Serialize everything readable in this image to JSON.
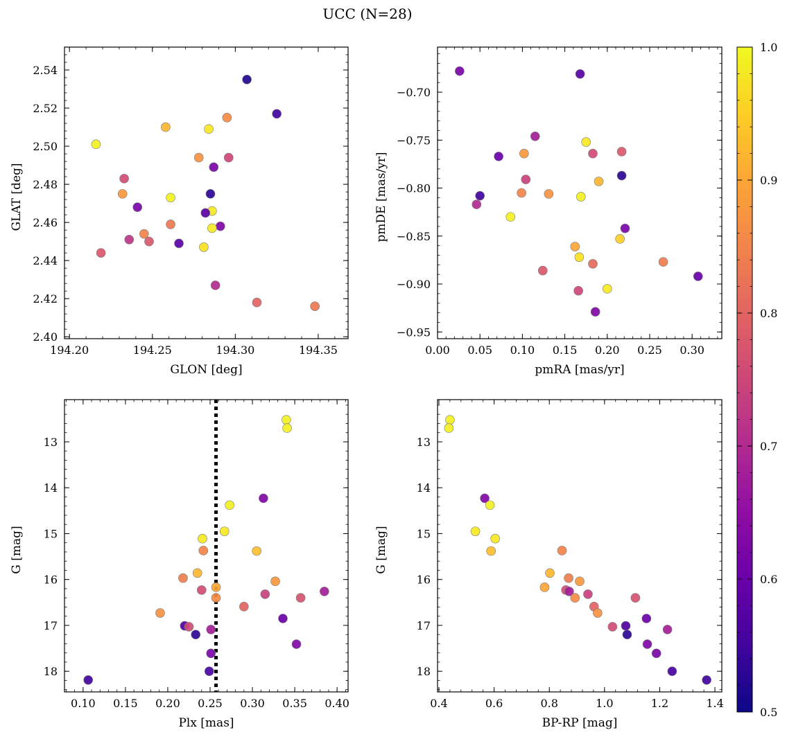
{
  "figure": {
    "title": "UCC (N=28)"
  },
  "colorbar": {
    "min": 0.5,
    "max": 1.0,
    "colormap": "plasma",
    "tick_labels": [
      "0.5",
      "0.6",
      "0.7",
      "0.8",
      "0.9",
      "1.0"
    ]
  },
  "chart_data": [
    {
      "id": "sky",
      "type": "scatter",
      "xlabel": "GLON [deg]",
      "ylabel": "GLAT [deg]",
      "xlim": [
        194.197,
        194.368
      ],
      "ylim": [
        2.399,
        2.552
      ],
      "xticks": [
        194.2,
        194.25,
        194.3,
        194.35
      ],
      "xtick_labels": [
        "194.20",
        "194.25",
        "194.30",
        "194.35"
      ],
      "yticks": [
        2.4,
        2.42,
        2.44,
        2.46,
        2.48,
        2.5,
        2.52,
        2.54
      ],
      "ytick_labels": [
        "2.40",
        "2.42",
        "2.44",
        "2.46",
        "2.48",
        "2.50",
        "2.52",
        "2.54"
      ],
      "points": [
        {
          "x": 194.307,
          "y": 2.535,
          "c": 0.52
        },
        {
          "x": 194.325,
          "y": 2.517,
          "c": 0.55
        },
        {
          "x": 194.295,
          "y": 2.515,
          "c": 0.86
        },
        {
          "x": 194.258,
          "y": 2.51,
          "c": 0.92
        },
        {
          "x": 194.284,
          "y": 2.509,
          "c": 0.98
        },
        {
          "x": 194.216,
          "y": 2.501,
          "c": 0.99
        },
        {
          "x": 194.278,
          "y": 2.494,
          "c": 0.87
        },
        {
          "x": 194.296,
          "y": 2.494,
          "c": 0.75
        },
        {
          "x": 194.287,
          "y": 2.489,
          "c": 0.62
        },
        {
          "x": 194.233,
          "y": 2.483,
          "c": 0.76
        },
        {
          "x": 194.232,
          "y": 2.475,
          "c": 0.88
        },
        {
          "x": 194.285,
          "y": 2.475,
          "c": 0.53
        },
        {
          "x": 194.261,
          "y": 2.473,
          "c": 0.99
        },
        {
          "x": 194.241,
          "y": 2.468,
          "c": 0.62
        },
        {
          "x": 194.286,
          "y": 2.466,
          "c": 0.98
        },
        {
          "x": 194.282,
          "y": 2.465,
          "c": 0.58
        },
        {
          "x": 194.261,
          "y": 2.459,
          "c": 0.83
        },
        {
          "x": 194.291,
          "y": 2.458,
          "c": 0.63
        },
        {
          "x": 194.286,
          "y": 2.457,
          "c": 0.98
        },
        {
          "x": 194.245,
          "y": 2.454,
          "c": 0.85
        },
        {
          "x": 194.236,
          "y": 2.451,
          "c": 0.72
        },
        {
          "x": 194.248,
          "y": 2.45,
          "c": 0.78
        },
        {
          "x": 194.266,
          "y": 2.449,
          "c": 0.58
        },
        {
          "x": 194.281,
          "y": 2.447,
          "c": 0.97
        },
        {
          "x": 194.219,
          "y": 2.444,
          "c": 0.78
        },
        {
          "x": 194.288,
          "y": 2.427,
          "c": 0.7
        },
        {
          "x": 194.313,
          "y": 2.418,
          "c": 0.8
        },
        {
          "x": 194.348,
          "y": 2.416,
          "c": 0.83
        }
      ]
    },
    {
      "id": "pm",
      "type": "scatter",
      "xlabel": "pmRA [mas/yr]",
      "ylabel": "pmDE [mas/yr]",
      "xlim": [
        0.0,
        0.335
      ],
      "ylim": [
        -0.957,
        -0.653
      ],
      "xticks": [
        0.0,
        0.05,
        0.1,
        0.15,
        0.2,
        0.25,
        0.3
      ],
      "xtick_labels": [
        "0.00",
        "0.05",
        "0.10",
        "0.15",
        "0.20",
        "0.25",
        "0.30"
      ],
      "yticks": [
        -0.95,
        -0.9,
        -0.85,
        -0.8,
        -0.75,
        -0.7
      ],
      "ytick_labels": [
        "−0.95",
        "−0.90",
        "−0.85",
        "−0.80",
        "−0.75",
        "−0.70"
      ],
      "points": [
        {
          "x": 0.026,
          "y": -0.678,
          "c": 0.62
        },
        {
          "x": 0.168,
          "y": -0.681,
          "c": 0.58
        },
        {
          "x": 0.115,
          "y": -0.746,
          "c": 0.68
        },
        {
          "x": 0.175,
          "y": -0.752,
          "c": 0.98
        },
        {
          "x": 0.217,
          "y": -0.762,
          "c": 0.78
        },
        {
          "x": 0.102,
          "y": -0.764,
          "c": 0.88
        },
        {
          "x": 0.183,
          "y": -0.764,
          "c": 0.76
        },
        {
          "x": 0.072,
          "y": -0.767,
          "c": 0.6
        },
        {
          "x": 0.217,
          "y": -0.787,
          "c": 0.53
        },
        {
          "x": 0.104,
          "y": -0.791,
          "c": 0.74
        },
        {
          "x": 0.19,
          "y": -0.793,
          "c": 0.92
        },
        {
          "x": 0.099,
          "y": -0.805,
          "c": 0.85
        },
        {
          "x": 0.131,
          "y": -0.806,
          "c": 0.87
        },
        {
          "x": 0.05,
          "y": -0.808,
          "c": 0.55
        },
        {
          "x": 0.169,
          "y": -0.809,
          "c": 0.99
        },
        {
          "x": 0.046,
          "y": -0.817,
          "c": 0.7
        },
        {
          "x": 0.086,
          "y": -0.83,
          "c": 0.99
        },
        {
          "x": 0.221,
          "y": -0.842,
          "c": 0.62
        },
        {
          "x": 0.215,
          "y": -0.853,
          "c": 0.95
        },
        {
          "x": 0.162,
          "y": -0.861,
          "c": 0.9
        },
        {
          "x": 0.167,
          "y": -0.872,
          "c": 0.97
        },
        {
          "x": 0.266,
          "y": -0.877,
          "c": 0.84
        },
        {
          "x": 0.183,
          "y": -0.879,
          "c": 0.81
        },
        {
          "x": 0.124,
          "y": -0.886,
          "c": 0.78
        },
        {
          "x": 0.307,
          "y": -0.892,
          "c": 0.6
        },
        {
          "x": 0.2,
          "y": -0.905,
          "c": 0.98
        },
        {
          "x": 0.166,
          "y": -0.907,
          "c": 0.75
        },
        {
          "x": 0.186,
          "y": -0.929,
          "c": 0.63
        }
      ]
    },
    {
      "id": "plx",
      "type": "scatter",
      "xlabel": "Plx [mas]",
      "ylabel": "G [mag]",
      "xlim": [
        0.078,
        0.413
      ],
      "ylim": [
        18.45,
        12.08
      ],
      "y_inverted": true,
      "vline": {
        "x": 0.257,
        "style": "dotted"
      },
      "xticks": [
        0.1,
        0.15,
        0.2,
        0.25,
        0.3,
        0.35,
        0.4
      ],
      "xtick_labels": [
        "0.10",
        "0.15",
        "0.20",
        "0.25",
        "0.30",
        "0.35",
        "0.40"
      ],
      "yticks": [
        13,
        14,
        15,
        16,
        17,
        18
      ],
      "ytick_labels": [
        "13",
        "14",
        "15",
        "16",
        "17",
        "18"
      ],
      "points": [
        {
          "x": 0.34,
          "y": 12.52,
          "c": 0.99
        },
        {
          "x": 0.341,
          "y": 12.7,
          "c": 0.99
        },
        {
          "x": 0.313,
          "y": 14.23,
          "c": 0.63
        },
        {
          "x": 0.273,
          "y": 14.38,
          "c": 0.99
        },
        {
          "x": 0.267,
          "y": 14.95,
          "c": 0.98
        },
        {
          "x": 0.241,
          "y": 15.11,
          "c": 0.98
        },
        {
          "x": 0.242,
          "y": 15.37,
          "c": 0.85
        },
        {
          "x": 0.305,
          "y": 15.38,
          "c": 0.93
        },
        {
          "x": 0.235,
          "y": 15.86,
          "c": 0.92
        },
        {
          "x": 0.218,
          "y": 15.97,
          "c": 0.84
        },
        {
          "x": 0.327,
          "y": 16.04,
          "c": 0.88
        },
        {
          "x": 0.257,
          "y": 16.17,
          "c": 0.9
        },
        {
          "x": 0.24,
          "y": 16.23,
          "c": 0.76
        },
        {
          "x": 0.385,
          "y": 16.26,
          "c": 0.68
        },
        {
          "x": 0.315,
          "y": 16.32,
          "c": 0.74
        },
        {
          "x": 0.357,
          "y": 16.4,
          "c": 0.77
        },
        {
          "x": 0.257,
          "y": 16.4,
          "c": 0.86
        },
        {
          "x": 0.29,
          "y": 16.59,
          "c": 0.8
        },
        {
          "x": 0.191,
          "y": 16.73,
          "c": 0.87
        },
        {
          "x": 0.336,
          "y": 16.85,
          "c": 0.6
        },
        {
          "x": 0.22,
          "y": 17.01,
          "c": 0.57
        },
        {
          "x": 0.225,
          "y": 17.03,
          "c": 0.76
        },
        {
          "x": 0.251,
          "y": 17.09,
          "c": 0.68
        },
        {
          "x": 0.233,
          "y": 17.2,
          "c": 0.53
        },
        {
          "x": 0.352,
          "y": 17.41,
          "c": 0.63
        },
        {
          "x": 0.251,
          "y": 17.61,
          "c": 0.62
        },
        {
          "x": 0.249,
          "y": 18.0,
          "c": 0.56
        },
        {
          "x": 0.106,
          "y": 18.19,
          "c": 0.55
        }
      ]
    },
    {
      "id": "cmd",
      "type": "scatter",
      "xlabel": "BP-RP [mag]",
      "ylabel": "G [mag]",
      "xlim": [
        0.395,
        1.425
      ],
      "ylim": [
        18.45,
        12.08
      ],
      "y_inverted": true,
      "xticks": [
        0.4,
        0.6,
        0.8,
        1.0,
        1.2,
        1.4
      ],
      "xtick_labels": [
        "0.4",
        "0.6",
        "0.8",
        "1.0",
        "1.2",
        "1.4"
      ],
      "yticks": [
        13,
        14,
        15,
        16,
        17,
        18
      ],
      "ytick_labels": [
        "13",
        "14",
        "15",
        "16",
        "17",
        "18"
      ],
      "points": [
        {
          "x": 0.44,
          "y": 12.52,
          "c": 0.99
        },
        {
          "x": 0.436,
          "y": 12.7,
          "c": 0.99
        },
        {
          "x": 0.566,
          "y": 14.23,
          "c": 0.63
        },
        {
          "x": 0.585,
          "y": 14.38,
          "c": 0.99
        },
        {
          "x": 0.532,
          "y": 14.95,
          "c": 0.98
        },
        {
          "x": 0.604,
          "y": 15.11,
          "c": 0.98
        },
        {
          "x": 0.846,
          "y": 15.37,
          "c": 0.85
        },
        {
          "x": 0.589,
          "y": 15.38,
          "c": 0.93
        },
        {
          "x": 0.802,
          "y": 15.86,
          "c": 0.92
        },
        {
          "x": 0.87,
          "y": 15.97,
          "c": 0.84
        },
        {
          "x": 0.91,
          "y": 16.04,
          "c": 0.88
        },
        {
          "x": 0.783,
          "y": 16.17,
          "c": 0.9
        },
        {
          "x": 0.86,
          "y": 16.23,
          "c": 0.76
        },
        {
          "x": 0.872,
          "y": 16.26,
          "c": 0.68
        },
        {
          "x": 0.94,
          "y": 16.32,
          "c": 0.74
        },
        {
          "x": 1.112,
          "y": 16.4,
          "c": 0.77
        },
        {
          "x": 0.893,
          "y": 16.4,
          "c": 0.86
        },
        {
          "x": 0.962,
          "y": 16.59,
          "c": 0.8
        },
        {
          "x": 0.975,
          "y": 16.73,
          "c": 0.87
        },
        {
          "x": 1.152,
          "y": 16.85,
          "c": 0.6
        },
        {
          "x": 1.077,
          "y": 17.01,
          "c": 0.57
        },
        {
          "x": 1.029,
          "y": 17.03,
          "c": 0.76
        },
        {
          "x": 1.228,
          "y": 17.09,
          "c": 0.68
        },
        {
          "x": 1.082,
          "y": 17.2,
          "c": 0.53
        },
        {
          "x": 1.155,
          "y": 17.41,
          "c": 0.63
        },
        {
          "x": 1.188,
          "y": 17.61,
          "c": 0.62
        },
        {
          "x": 1.245,
          "y": 18.0,
          "c": 0.56
        },
        {
          "x": 1.37,
          "y": 18.19,
          "c": 0.55
        }
      ]
    }
  ]
}
